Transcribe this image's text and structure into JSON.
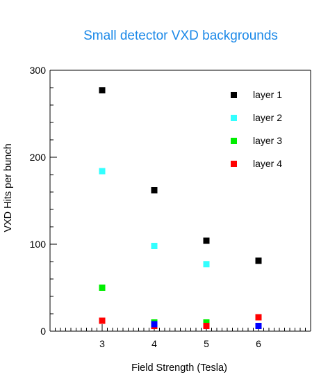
{
  "chart_data": {
    "type": "scatter",
    "title": "Small detector VXD backgrounds",
    "title_color": "#1a88e8",
    "xlabel": "Field Strength (Tesla)",
    "ylabel": "VXD Hits per bunch",
    "xlim": [
      2,
      7
    ],
    "ylim": [
      0,
      300
    ],
    "x_ticks": [
      3,
      4,
      5,
      6
    ],
    "x_tick_labels": [
      "3",
      "4",
      "5",
      "6"
    ],
    "y_ticks": [
      0,
      100,
      200,
      300
    ],
    "y_tick_labels": [
      "0",
      "100",
      "200",
      "300"
    ],
    "x_minor_step": 0.1,
    "y_minor_step": 20,
    "grid": false,
    "legend_position": "top-right",
    "series": [
      {
        "name": "layer 1",
        "color": "#000000",
        "x": [
          3,
          4,
          5,
          6
        ],
        "y": [
          277,
          162,
          104,
          81
        ]
      },
      {
        "name": "layer 2",
        "color": "#33ffff",
        "x": [
          3,
          4,
          5
        ],
        "y": [
          184,
          98,
          77
        ]
      },
      {
        "name": "layer 3",
        "color": "#00ee00",
        "x": [
          3,
          4,
          5
        ],
        "y": [
          50,
          10,
          10
        ]
      },
      {
        "name": "layer 4",
        "color": "#ff0000",
        "x": [
          3,
          4,
          5,
          6
        ],
        "y": [
          12,
          6,
          6,
          16
        ]
      }
    ],
    "extra_points": [
      {
        "color": "#0000ff",
        "x": 4,
        "y": 8
      },
      {
        "color": "#0000ff",
        "x": 6,
        "y": 6
      }
    ]
  }
}
